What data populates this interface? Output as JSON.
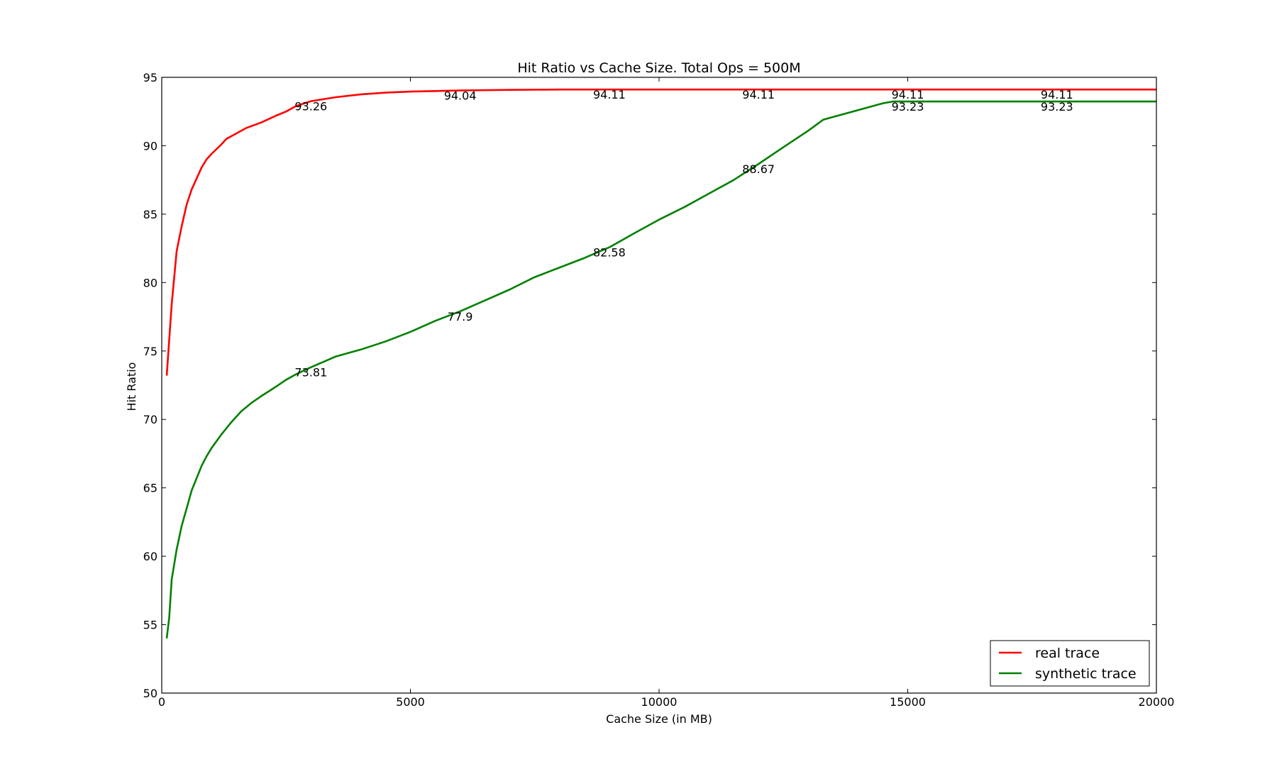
{
  "chart_data": {
    "type": "line",
    "title": "Hit Ratio vs Cache Size. Total Ops = 500M",
    "xlabel": "Cache Size (in MB)",
    "ylabel": "Hit Ratio",
    "xlim": [
      0,
      20000
    ],
    "ylim": [
      50,
      95
    ],
    "xticks": [
      0,
      5000,
      10000,
      15000,
      20000
    ],
    "yticks": [
      50,
      55,
      60,
      65,
      70,
      75,
      80,
      85,
      90,
      95
    ],
    "grid": false,
    "legend_position": "lower-right",
    "series": [
      {
        "name": "real trace",
        "color": "#ff0000",
        "x": [
          100,
          200,
          300,
          400,
          500,
          600,
          700,
          800,
          900,
          1000,
          1200,
          1300,
          1500,
          1700,
          2000,
          2300,
          2500,
          2700,
          3000,
          3500,
          4000,
          4500,
          5000,
          6000,
          7000,
          8000,
          9000,
          10000,
          12000,
          15000,
          18000,
          20000
        ],
        "y": [
          73.2,
          78.4,
          82.3,
          84.1,
          85.7,
          86.8,
          87.6,
          88.4,
          89.0,
          89.4,
          90.1,
          90.5,
          90.9,
          91.3,
          91.7,
          92.2,
          92.5,
          92.9,
          93.26,
          93.55,
          93.75,
          93.88,
          93.96,
          94.04,
          94.08,
          94.11,
          94.11,
          94.11,
          94.11,
          94.11,
          94.11,
          94.11
        ]
      },
      {
        "name": "synthetic trace",
        "color": "#008000",
        "x": [
          100,
          150,
          200,
          300,
          400,
          500,
          600,
          700,
          800,
          900,
          1000,
          1200,
          1400,
          1600,
          1800,
          2000,
          2300,
          2500,
          2700,
          3000,
          3500,
          4000,
          4500,
          5000,
          5500,
          6000,
          6500,
          7000,
          7500,
          8000,
          8500,
          9000,
          9500,
          10000,
          10500,
          11000,
          11500,
          12000,
          12500,
          13000,
          13300,
          13500,
          14000,
          14500,
          14700,
          15000,
          16000,
          18000,
          20000
        ],
        "y": [
          54.0,
          55.5,
          58.3,
          60.5,
          62.2,
          63.5,
          64.8,
          65.7,
          66.6,
          67.3,
          67.9,
          68.9,
          69.8,
          70.6,
          71.2,
          71.7,
          72.4,
          72.9,
          73.3,
          73.81,
          74.6,
          75.1,
          75.7,
          76.4,
          77.2,
          77.9,
          78.7,
          79.5,
          80.4,
          81.1,
          81.8,
          82.58,
          83.6,
          84.6,
          85.5,
          86.5,
          87.5,
          88.67,
          89.9,
          91.1,
          91.9,
          92.1,
          92.6,
          93.1,
          93.23,
          93.23,
          93.23,
          93.23,
          93.23
        ]
      }
    ],
    "annotations": [
      {
        "x": 3000,
        "y": 93.26,
        "text": "93.26",
        "series": "real trace"
      },
      {
        "x": 6000,
        "y": 94.04,
        "text": "94.04",
        "series": "real trace"
      },
      {
        "x": 9000,
        "y": 94.11,
        "text": "94.11",
        "series": "real trace"
      },
      {
        "x": 12000,
        "y": 94.11,
        "text": "94.11",
        "series": "real trace"
      },
      {
        "x": 15000,
        "y": 94.11,
        "text": "94.11",
        "series": "real trace"
      },
      {
        "x": 18000,
        "y": 94.11,
        "text": "94.11",
        "series": "real trace"
      },
      {
        "x": 3000,
        "y": 73.81,
        "text": "73.81",
        "series": "synthetic trace"
      },
      {
        "x": 6000,
        "y": 77.9,
        "text": "77.9",
        "series": "synthetic trace"
      },
      {
        "x": 9000,
        "y": 82.58,
        "text": "82.58",
        "series": "synthetic trace"
      },
      {
        "x": 12000,
        "y": 88.67,
        "text": "88.67",
        "series": "synthetic trace"
      },
      {
        "x": 15000,
        "y": 93.23,
        "text": "93.23",
        "series": "synthetic trace"
      },
      {
        "x": 18000,
        "y": 93.23,
        "text": "93.23",
        "series": "synthetic trace"
      }
    ]
  }
}
